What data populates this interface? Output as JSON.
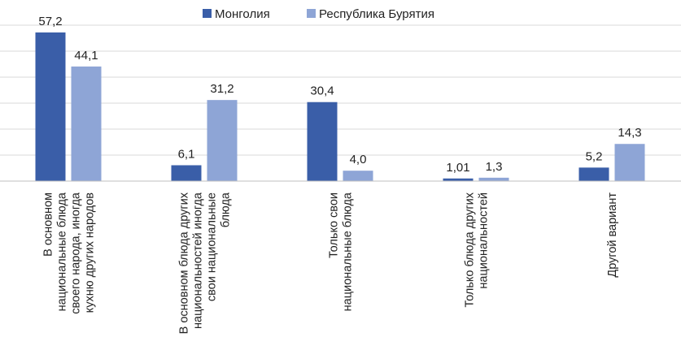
{
  "chart_data": {
    "type": "bar",
    "categories": [
      [
        "В основном",
        "национальные блюда",
        "своего народа, иногда",
        "кухню других народов"
      ],
      [
        "В основном блюда других",
        "национальностей иногда",
        "свои национальные",
        "блюда"
      ],
      [
        "Только свои",
        "национальные блюда"
      ],
      [
        "Только  блюда других",
        "национальностей"
      ],
      [
        "Другой вариант"
      ]
    ],
    "series": [
      {
        "name": "Монголия",
        "values": [
          57.2,
          6.1,
          30.4,
          1.01,
          5.2
        ],
        "labels": [
          "57,2",
          "6,1",
          "30,4",
          "1,01",
          "5,2"
        ],
        "color": "#3a5ea8"
      },
      {
        "name": "Республика Бурятия",
        "values": [
          44.1,
          31.2,
          4.0,
          1.3,
          14.3
        ],
        "labels": [
          "44,1",
          "31,2",
          "4,0",
          "1,3",
          "14,3"
        ],
        "color": "#8ea5d6"
      }
    ],
    "ylim": [
      0,
      60
    ],
    "grid": true,
    "legend": "top-center",
    "axis_color": "#bfbfbf"
  }
}
